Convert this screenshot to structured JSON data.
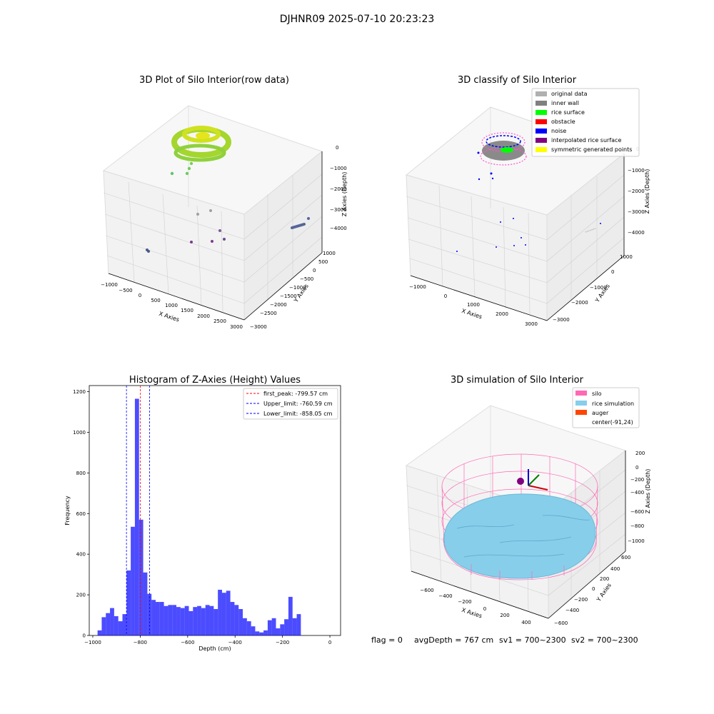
{
  "figure": {
    "suptitle": "DJHNR09 2025-07-10 20:23:23",
    "status": {
      "flag": "flag = 0",
      "avg_depth": "avgDepth = 767 cm",
      "sv1": "sv1 = 700~2300",
      "sv2": "sv2 = 700~2300"
    }
  },
  "panels": {
    "raw": {
      "title": "3D Plot of Silo Interior(row data)",
      "xlabel": "X Axies",
      "ylabel": "Y Axies",
      "zlabel": "Z Axies (Depth)",
      "xticks": [
        "−1000",
        "−500",
        "0",
        "500",
        "1000",
        "1500",
        "2000",
        "2500",
        "3000"
      ],
      "yticks": [
        "1000",
        "500",
        "0",
        "−500",
        "−1000",
        "−1500",
        "−2000",
        "−2500",
        "−3000"
      ],
      "zticks": [
        "0",
        "−1000",
        "−2000",
        "−3000",
        "−4000"
      ]
    },
    "classify": {
      "title": "3D classify of Silo Interior",
      "xlabel": "X Axies",
      "ylabel": "Y Axies",
      "zlabel": "Z Axies (Depth)",
      "xticks": [
        "−1000",
        "0",
        "1000",
        "2000",
        "3000"
      ],
      "yticks": [
        "1000",
        "0",
        "−1000",
        "−2000",
        "−3000"
      ],
      "zticks": [
        "0",
        "−1000",
        "−2000",
        "−3000",
        "−4000"
      ],
      "legend": [
        {
          "label": "original data",
          "color": "#b0b0b0"
        },
        {
          "label": "inner wall",
          "color": "#808080"
        },
        {
          "label": "rice surface",
          "color": "#00ff00"
        },
        {
          "label": "obstacle",
          "color": "#ff0000"
        },
        {
          "label": "noise",
          "color": "#0000ff"
        },
        {
          "label": "interpolated rice surface",
          "color": "#800080"
        },
        {
          "label": "symmetric generated points",
          "color": "#ffff00"
        }
      ]
    },
    "simulation": {
      "title": "3D simulation of Silo Interior",
      "xlabel": "X Axies",
      "ylabel": "Y Axies",
      "zlabel": "Z Axies (Depth)",
      "xticks": [
        "−600",
        "−400",
        "−200",
        "0",
        "200",
        "400"
      ],
      "yticks": [
        "600",
        "400",
        "200",
        "0",
        "−200",
        "−400",
        "−600"
      ],
      "zticks": [
        "200",
        "0",
        "−200",
        "−400",
        "−600",
        "−800",
        "−1000"
      ],
      "legend": [
        {
          "label": "silo",
          "color": "#ff69b4"
        },
        {
          "label": "rice simulation",
          "color": "#87ceeb"
        },
        {
          "label": "auger",
          "color": "#ff4500"
        },
        {
          "label": "center(-91,24)",
          "color": "none"
        }
      ]
    }
  },
  "chart_data": {
    "type": "bar",
    "title": "Histogram of Z-Axies (Height) Values",
    "xlabel": "Depth (cm)",
    "ylabel": "Frequency",
    "xlim": [
      -1015,
      45
    ],
    "ylim": [
      0,
      1230
    ],
    "xticks": [
      -1000,
      -800,
      -600,
      -400,
      -200,
      0
    ],
    "yticks": [
      0,
      200,
      400,
      600,
      800,
      1000,
      1200
    ],
    "bin_start": -980,
    "bin_width": 17.5,
    "values": [
      25,
      90,
      110,
      135,
      95,
      70,
      105,
      320,
      535,
      1165,
      570,
      310,
      205,
      175,
      165,
      165,
      145,
      150,
      150,
      140,
      135,
      145,
      120,
      140,
      145,
      135,
      150,
      145,
      130,
      225,
      210,
      220,
      165,
      150,
      130,
      85,
      70,
      45,
      20,
      15,
      25,
      75,
      85,
      35,
      55,
      80,
      190,
      85,
      105
    ],
    "color": "#0000ff",
    "vlines": [
      {
        "label": "first_peak: -799.57 cm",
        "x": -799.57,
        "color": "#ff0000"
      },
      {
        "label": "Upper_limit: -760.59 cm",
        "x": -760.59,
        "color": "#0000ff"
      },
      {
        "label": "Lower_limit: -858.05 cm",
        "x": -858.05,
        "color": "#0000ff"
      }
    ],
    "legend_position": "top-right"
  }
}
